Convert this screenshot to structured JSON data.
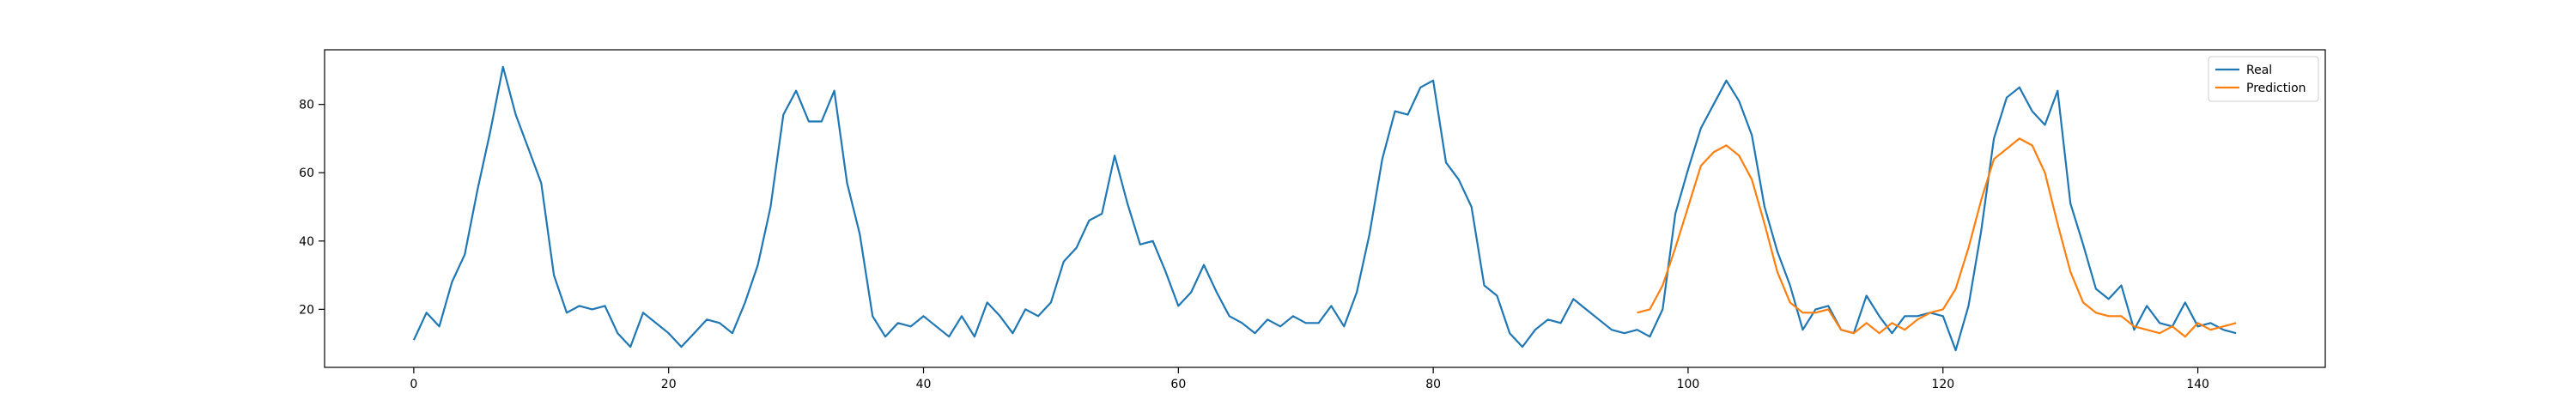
{
  "chart_data": {
    "type": "line",
    "title": "",
    "xlabel": "",
    "ylabel": "",
    "xlim": [
      -7,
      150
    ],
    "ylim": [
      3,
      96
    ],
    "x_ticks": [
      0,
      20,
      40,
      60,
      80,
      100,
      120,
      140
    ],
    "y_ticks": [
      20,
      40,
      60,
      80
    ],
    "grid": false,
    "legend_position": "top-right",
    "series": [
      {
        "name": "Real",
        "color": "#1f77b4",
        "x_start": 0,
        "values": [
          11,
          19,
          15,
          28,
          36,
          55,
          72,
          91,
          77,
          67,
          57,
          30,
          19,
          21,
          20,
          21,
          13,
          9,
          19,
          16,
          13,
          9,
          13,
          17,
          16,
          13,
          22,
          33,
          50,
          77,
          84,
          75,
          75,
          84,
          57,
          42,
          18,
          12,
          16,
          15,
          18,
          15,
          12,
          18,
          12,
          22,
          18,
          13,
          20,
          18,
          22,
          34,
          38,
          46,
          48,
          65,
          51,
          39,
          40,
          31,
          21,
          25,
          33,
          25,
          18,
          16,
          13,
          17,
          15,
          18,
          16,
          16,
          21,
          15,
          25,
          42,
          64,
          78,
          77,
          85,
          87,
          63,
          58,
          50,
          27,
          24,
          13,
          9,
          14,
          17,
          16,
          23,
          20,
          17,
          14,
          13,
          14,
          12,
          20,
          48,
          61,
          73,
          80,
          87,
          81,
          71,
          50,
          37,
          27,
          14,
          20,
          21,
          14,
          13,
          24,
          18,
          13,
          18,
          18,
          19,
          18,
          8,
          21,
          43,
          70,
          82,
          85,
          78,
          74,
          84,
          51,
          39,
          26,
          23,
          27,
          14,
          21,
          16,
          15,
          22,
          15,
          16,
          14,
          13
        ]
      },
      {
        "name": "Prediction",
        "color": "#ff7f0e",
        "x_start": 96,
        "values": [
          19,
          20,
          27,
          38,
          50,
          62,
          66,
          68,
          65,
          58,
          45,
          31,
          22,
          19,
          19,
          20,
          14,
          13,
          16,
          13,
          16,
          14,
          17,
          19,
          20,
          26,
          38,
          52,
          64,
          67,
          70,
          68,
          60,
          45,
          31,
          22,
          19,
          18,
          18,
          15,
          14,
          13,
          15,
          12,
          16,
          14,
          15,
          16
        ]
      }
    ]
  }
}
